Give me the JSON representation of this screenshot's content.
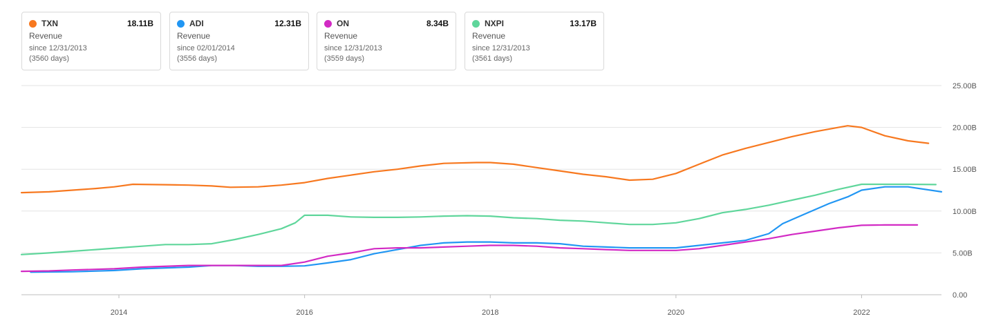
{
  "legend": [
    {
      "ticker": "TXN",
      "value": "18.11B",
      "metric": "Revenue",
      "since": "since 12/31/2013",
      "days": "(3560 days)",
      "color": "#f7781f"
    },
    {
      "ticker": "ADI",
      "value": "12.31B",
      "metric": "Revenue",
      "since": "since 02/01/2014",
      "days": "(3556 days)",
      "color": "#2196f3"
    },
    {
      "ticker": "ON",
      "value": "8.34B",
      "metric": "Revenue",
      "since": "since 12/31/2013",
      "days": "(3559 days)",
      "color": "#d22ac4"
    },
    {
      "ticker": "NXPI",
      "value": "13.17B",
      "metric": "Revenue",
      "since": "since 12/31/2013",
      "days": "(3561 days)",
      "color": "#5fd69b"
    }
  ],
  "chart_data": {
    "type": "line",
    "title": "",
    "xlabel": "",
    "ylabel": "",
    "xlim": [
      2012.95,
      2022.86
    ],
    "ylim": [
      0,
      25
    ],
    "y_ticks": [
      "0.00",
      "5.00B",
      "10.00B",
      "15.00B",
      "20.00B",
      "25.00B"
    ],
    "y_tick_values": [
      0,
      5,
      10,
      15,
      20,
      25
    ],
    "x_ticks": [
      "2014",
      "2016",
      "2018",
      "2020",
      "2022"
    ],
    "x_tick_values": [
      2014,
      2016,
      2018,
      2020,
      2022
    ],
    "series": [
      {
        "name": "TXN",
        "color": "#f7781f",
        "points": [
          [
            2012.95,
            12.2
          ],
          [
            2013.25,
            12.3
          ],
          [
            2013.5,
            12.5
          ],
          [
            2013.75,
            12.7
          ],
          [
            2013.95,
            12.9
          ],
          [
            2014.15,
            13.2
          ],
          [
            2014.5,
            13.15
          ],
          [
            2014.75,
            13.1
          ],
          [
            2015.0,
            13.0
          ],
          [
            2015.2,
            12.85
          ],
          [
            2015.5,
            12.9
          ],
          [
            2015.75,
            13.1
          ],
          [
            2016.0,
            13.4
          ],
          [
            2016.25,
            13.9
          ],
          [
            2016.5,
            14.3
          ],
          [
            2016.75,
            14.7
          ],
          [
            2017.0,
            15.0
          ],
          [
            2017.25,
            15.4
          ],
          [
            2017.5,
            15.7
          ],
          [
            2017.85,
            15.8
          ],
          [
            2018.0,
            15.8
          ],
          [
            2018.25,
            15.6
          ],
          [
            2018.5,
            15.2
          ],
          [
            2018.75,
            14.8
          ],
          [
            2019.0,
            14.4
          ],
          [
            2019.25,
            14.1
          ],
          [
            2019.5,
            13.7
          ],
          [
            2019.75,
            13.8
          ],
          [
            2020.0,
            14.5
          ],
          [
            2020.25,
            15.6
          ],
          [
            2020.5,
            16.7
          ],
          [
            2020.75,
            17.5
          ],
          [
            2021.0,
            18.2
          ],
          [
            2021.25,
            18.9
          ],
          [
            2021.5,
            19.5
          ],
          [
            2021.75,
            20.0
          ],
          [
            2021.85,
            20.2
          ],
          [
            2022.0,
            20.0
          ],
          [
            2022.25,
            19.0
          ],
          [
            2022.5,
            18.4
          ],
          [
            2022.72,
            18.1
          ]
        ]
      },
      {
        "name": "ADI",
        "color": "#2196f3",
        "points": [
          [
            2013.05,
            2.7
          ],
          [
            2013.5,
            2.75
          ],
          [
            2013.95,
            2.9
          ],
          [
            2014.25,
            3.1
          ],
          [
            2014.75,
            3.3
          ],
          [
            2015.0,
            3.5
          ],
          [
            2015.25,
            3.5
          ],
          [
            2015.5,
            3.4
          ],
          [
            2015.75,
            3.4
          ],
          [
            2016.0,
            3.45
          ],
          [
            2016.25,
            3.8
          ],
          [
            2016.5,
            4.2
          ],
          [
            2016.75,
            4.9
          ],
          [
            2017.0,
            5.4
          ],
          [
            2017.25,
            5.9
          ],
          [
            2017.5,
            6.2
          ],
          [
            2017.75,
            6.3
          ],
          [
            2018.0,
            6.3
          ],
          [
            2018.25,
            6.2
          ],
          [
            2018.5,
            6.2
          ],
          [
            2018.75,
            6.1
          ],
          [
            2019.0,
            5.8
          ],
          [
            2019.25,
            5.7
          ],
          [
            2019.5,
            5.6
          ],
          [
            2019.75,
            5.6
          ],
          [
            2020.0,
            5.6
          ],
          [
            2020.25,
            5.9
          ],
          [
            2020.5,
            6.2
          ],
          [
            2020.75,
            6.5
          ],
          [
            2021.0,
            7.3
          ],
          [
            2021.15,
            8.5
          ],
          [
            2021.4,
            9.7
          ],
          [
            2021.65,
            10.9
          ],
          [
            2021.85,
            11.7
          ],
          [
            2022.0,
            12.5
          ],
          [
            2022.25,
            12.9
          ],
          [
            2022.5,
            12.9
          ],
          [
            2022.86,
            12.3
          ]
        ]
      },
      {
        "name": "ON",
        "color": "#d22ac4",
        "points": [
          [
            2012.95,
            2.8
          ],
          [
            2013.25,
            2.85
          ],
          [
            2013.5,
            2.95
          ],
          [
            2013.95,
            3.1
          ],
          [
            2014.25,
            3.3
          ],
          [
            2014.75,
            3.5
          ],
          [
            2015.0,
            3.5
          ],
          [
            2015.5,
            3.5
          ],
          [
            2015.75,
            3.5
          ],
          [
            2016.0,
            3.9
          ],
          [
            2016.25,
            4.6
          ],
          [
            2016.5,
            5.0
          ],
          [
            2016.75,
            5.5
          ],
          [
            2017.0,
            5.6
          ],
          [
            2017.25,
            5.6
          ],
          [
            2017.5,
            5.7
          ],
          [
            2017.75,
            5.8
          ],
          [
            2018.0,
            5.9
          ],
          [
            2018.25,
            5.9
          ],
          [
            2018.5,
            5.8
          ],
          [
            2018.75,
            5.6
          ],
          [
            2019.0,
            5.5
          ],
          [
            2019.25,
            5.4
          ],
          [
            2019.5,
            5.3
          ],
          [
            2019.75,
            5.3
          ],
          [
            2020.0,
            5.3
          ],
          [
            2020.25,
            5.5
          ],
          [
            2020.5,
            5.9
          ],
          [
            2020.75,
            6.3
          ],
          [
            2021.0,
            6.7
          ],
          [
            2021.25,
            7.2
          ],
          [
            2021.5,
            7.6
          ],
          [
            2021.75,
            8.0
          ],
          [
            2022.0,
            8.3
          ],
          [
            2022.25,
            8.34
          ],
          [
            2022.6,
            8.34
          ]
        ]
      },
      {
        "name": "NXPI",
        "color": "#5fd69b",
        "points": [
          [
            2012.95,
            4.8
          ],
          [
            2013.25,
            5.0
          ],
          [
            2013.5,
            5.2
          ],
          [
            2013.75,
            5.4
          ],
          [
            2014.0,
            5.6
          ],
          [
            2014.25,
            5.8
          ],
          [
            2014.5,
            6.0
          ],
          [
            2014.75,
            6.0
          ],
          [
            2015.0,
            6.1
          ],
          [
            2015.25,
            6.6
          ],
          [
            2015.5,
            7.2
          ],
          [
            2015.75,
            7.9
          ],
          [
            2015.9,
            8.6
          ],
          [
            2016.0,
            9.5
          ],
          [
            2016.25,
            9.5
          ],
          [
            2016.5,
            9.3
          ],
          [
            2016.75,
            9.25
          ],
          [
            2017.0,
            9.25
          ],
          [
            2017.25,
            9.3
          ],
          [
            2017.5,
            9.4
          ],
          [
            2017.75,
            9.45
          ],
          [
            2018.0,
            9.4
          ],
          [
            2018.25,
            9.2
          ],
          [
            2018.5,
            9.1
          ],
          [
            2018.75,
            8.9
          ],
          [
            2019.0,
            8.8
          ],
          [
            2019.25,
            8.6
          ],
          [
            2019.5,
            8.4
          ],
          [
            2019.75,
            8.4
          ],
          [
            2020.0,
            8.6
          ],
          [
            2020.25,
            9.1
          ],
          [
            2020.5,
            9.8
          ],
          [
            2020.75,
            10.2
          ],
          [
            2021.0,
            10.7
          ],
          [
            2021.25,
            11.3
          ],
          [
            2021.5,
            11.9
          ],
          [
            2021.75,
            12.6
          ],
          [
            2022.0,
            13.2
          ],
          [
            2022.25,
            13.2
          ],
          [
            2022.5,
            13.2
          ],
          [
            2022.8,
            13.17
          ]
        ]
      }
    ]
  }
}
